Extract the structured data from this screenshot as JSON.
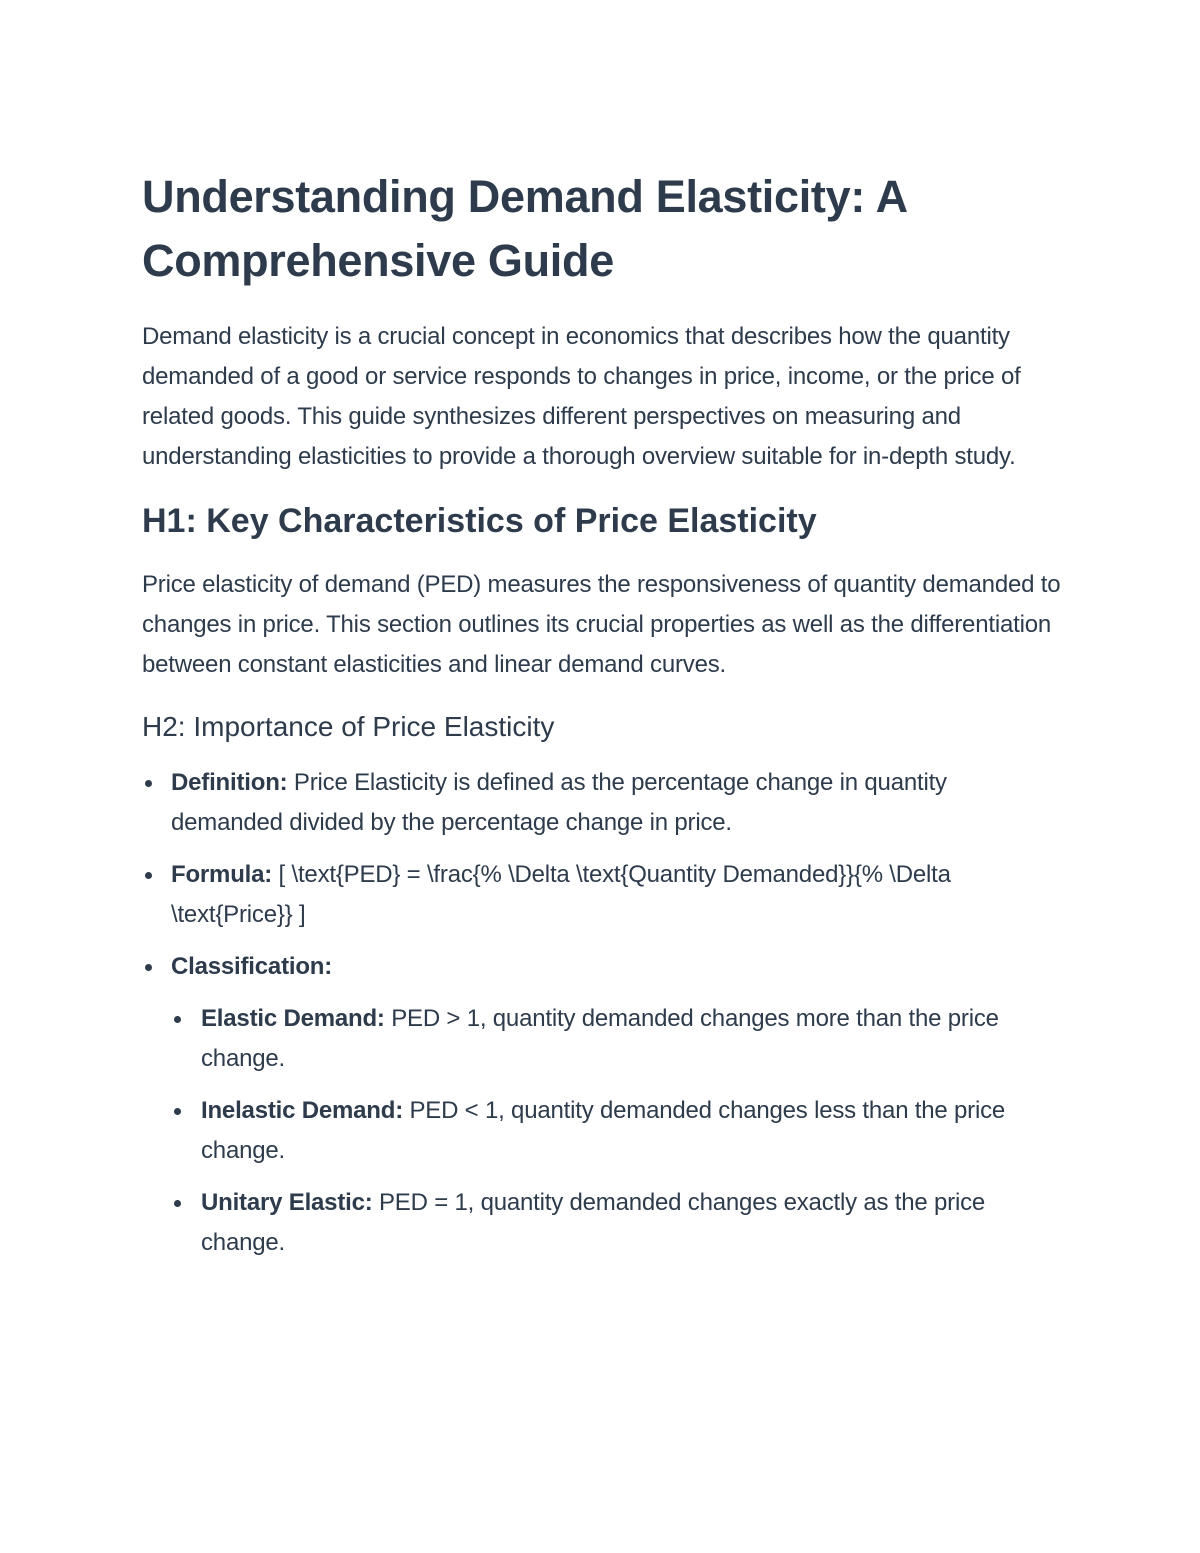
{
  "title": "Understanding Demand Elasticity: A Comprehensive Guide",
  "intro": "Demand elasticity is a crucial concept in economics that describes how the quantity demanded of a good or service responds to changes in price, income, or the price of related goods. This guide synthesizes different perspectives on measuring and understanding elasticities to provide a thorough overview suitable for in-depth study.",
  "section1": {
    "heading": "H1: Key Characteristics of Price Elasticity",
    "body": "Price elasticity of demand (PED) measures the responsiveness of quantity demanded to changes in price. This section outlines its crucial properties as well as the differentiation between constant elasticities and linear demand curves."
  },
  "section2": {
    "heading": "H2: Importance of Price Elasticity",
    "items": [
      {
        "label": "Definition:",
        "text": " Price Elasticity is defined as the percentage change in quantity demanded divided by the percentage change in price."
      },
      {
        "label": "Formula:",
        "text": " [ \\text{PED} = \\frac{% \\Delta \\text{Quantity Demanded}}{% \\Delta \\text{Price}} ]"
      },
      {
        "label": "Classification:",
        "text": ""
      }
    ],
    "subitems": [
      {
        "label": "Elastic Demand:",
        "text": " PED > 1, quantity demanded changes more than the price change."
      },
      {
        "label": "Inelastic Demand:",
        "text": " PED < 1, quantity demanded changes less than the price change."
      },
      {
        "label": "Unitary Elastic:",
        "text": " PED = 1, quantity demanded changes exactly as the price change."
      }
    ]
  }
}
